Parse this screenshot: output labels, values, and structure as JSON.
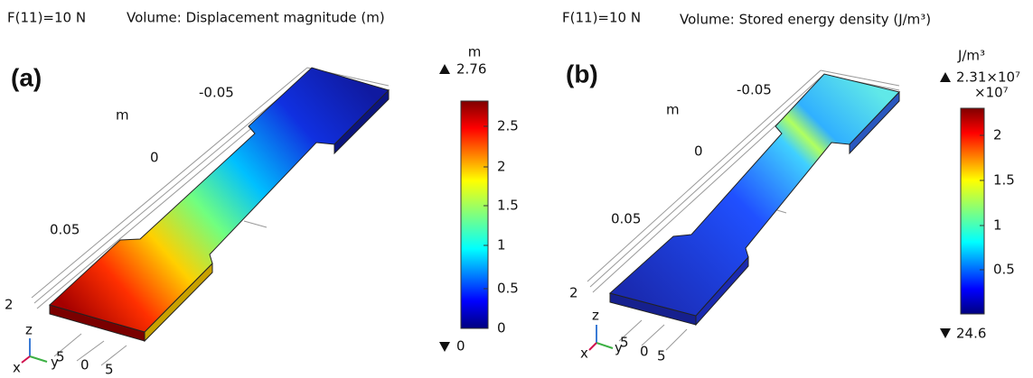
{
  "panels": [
    {
      "label": "(a)",
      "load": "F(11)=10 N",
      "title": "Volume: Displacement magnitude (m)",
      "unit": "m",
      "max": "2.76",
      "min": "0",
      "ticks": [
        "2.5",
        "2",
        "1.5",
        "1",
        "0.5",
        "0"
      ],
      "axis_labels": [
        "-0.05",
        "m",
        "0",
        "0.05",
        "2",
        "0",
        "5",
        "z",
        "y",
        "x",
        "5"
      ]
    },
    {
      "label": "(b)",
      "load": "F(11)=10 N",
      "title": "Volume: Stored energy density (J/m³)",
      "unit": "J/m³",
      "max": "2.31×10⁷",
      "multiplier": "×10⁷",
      "min": "24.6",
      "ticks": [
        "2",
        "1.5",
        "1",
        "0.5"
      ],
      "axis_labels": [
        "-0.05",
        "m",
        "0",
        "0.05",
        "2",
        "0",
        "5",
        "z",
        "y",
        "x",
        "5"
      ]
    }
  ]
}
